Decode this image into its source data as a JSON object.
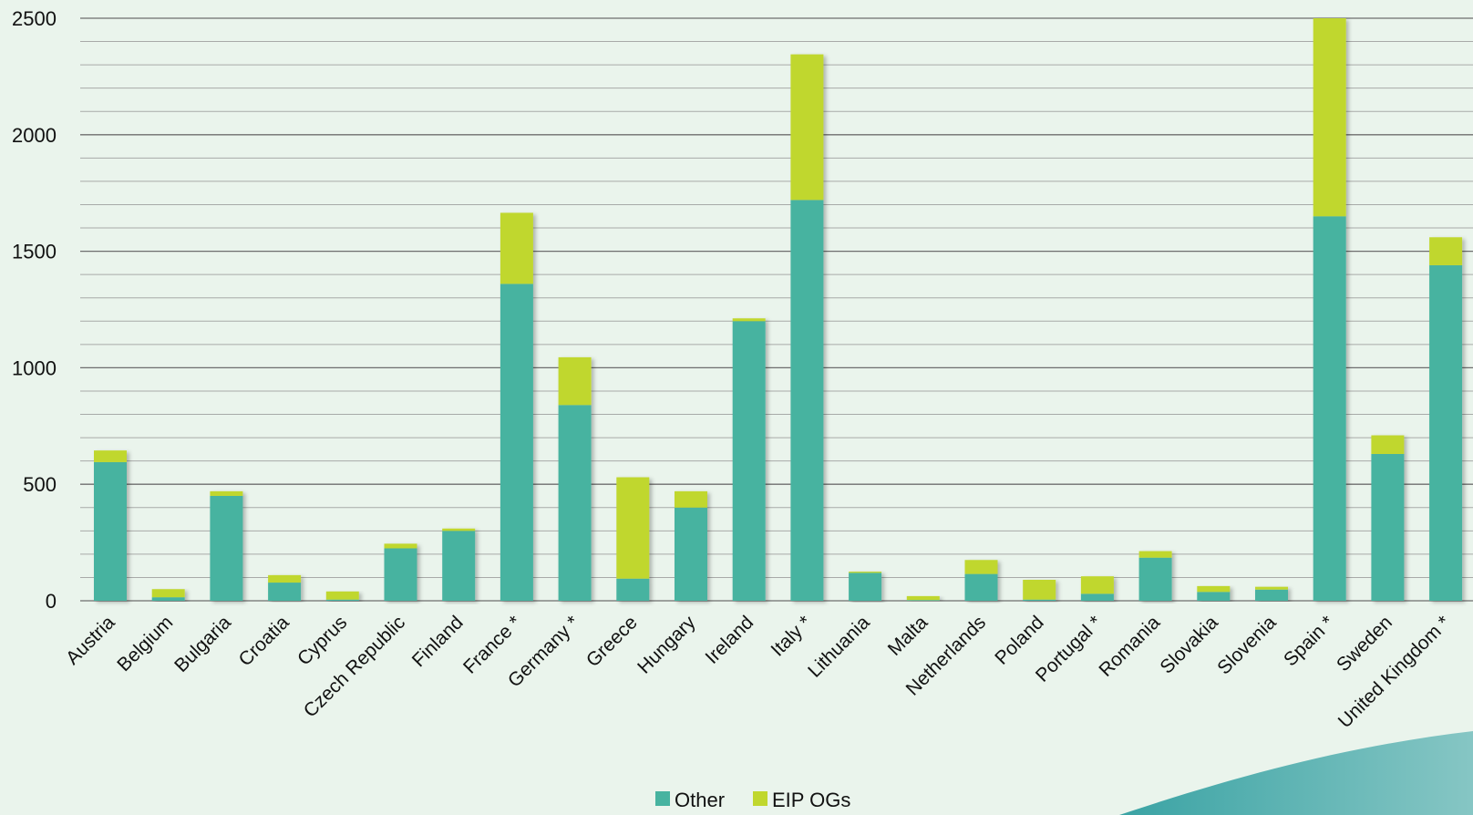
{
  "chart_data": {
    "type": "bar",
    "stacked": true,
    "categories": [
      "Austria",
      "Belgium",
      "Bulgaria",
      "Croatia",
      "Cyprus",
      "Czech Republic",
      "Finland",
      "France *",
      "Germany *",
      "Greece",
      "Hungary",
      "Ireland",
      "Italy *",
      "Lithuania",
      "Malta",
      "Netherlands",
      "Poland",
      "Portugal *",
      "Romania",
      "Slovakia",
      "Slovenia",
      "Spain *",
      "Sweden",
      "United Kingdom *"
    ],
    "series": [
      {
        "name": "Other",
        "color": "#47b3a0",
        "values": [
          595,
          15,
          450,
          78,
          5,
          225,
          300,
          1360,
          840,
          95,
          400,
          1200,
          1720,
          120,
          3,
          115,
          5,
          30,
          185,
          38,
          48,
          1650,
          630,
          1440
        ]
      },
      {
        "name": "EIP OGs",
        "color": "#c0d72e",
        "values": [
          50,
          35,
          20,
          32,
          35,
          20,
          10,
          305,
          205,
          435,
          70,
          12,
          625,
          5,
          17,
          60,
          85,
          75,
          28,
          25,
          12,
          850,
          80,
          120
        ]
      }
    ],
    "ylim": [
      0,
      2500
    ],
    "yticks": [
      0,
      500,
      1000,
      1500,
      2000,
      2500
    ],
    "grid": true,
    "legend": "bottom-center"
  }
}
